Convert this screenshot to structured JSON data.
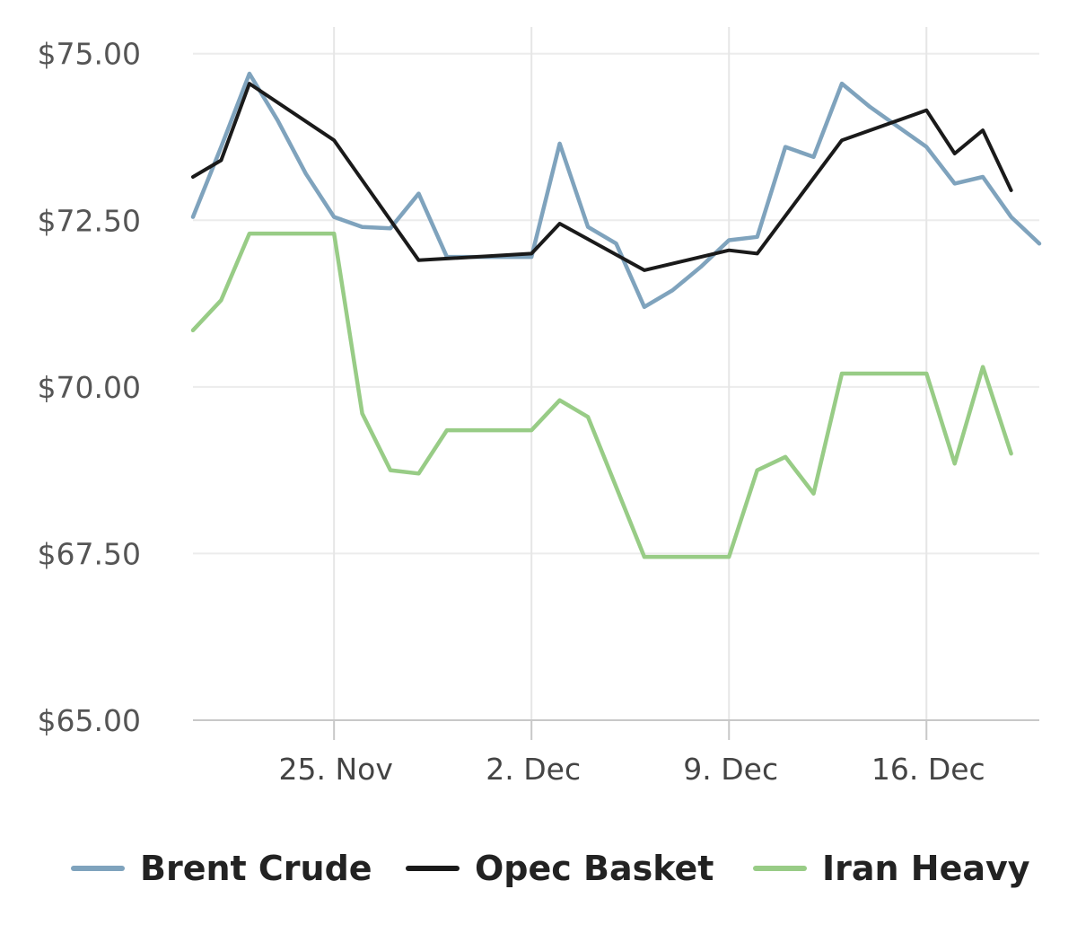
{
  "chart_data": {
    "type": "line",
    "title": "",
    "xlabel": "",
    "ylabel": "",
    "y_tick_labels": [
      "$65.00",
      "$67.50",
      "$70.00",
      "$72.50",
      "$75.00"
    ],
    "y_ticks": [
      65,
      67.5,
      70,
      72.5,
      75
    ],
    "ylim": [
      65,
      75.4
    ],
    "x_tick_labels": [
      "25. Nov",
      "2. Dec",
      "9. Dec",
      "16. Dec"
    ],
    "x_ticks": [
      "2019-11-25",
      "2019-12-02",
      "2019-12-09",
      "2019-12-16"
    ],
    "xlim": [
      "2019-11-20",
      "2019-12-20"
    ],
    "grid": true,
    "legend_position": "bottom",
    "series": [
      {
        "name": "Brent Crude",
        "color": "#7fa3bd",
        "points": [
          [
            "2019-11-20",
            72.55
          ],
          [
            "2019-11-21",
            73.6
          ],
          [
            "2019-11-22",
            74.7
          ],
          [
            "2019-11-23",
            74.0
          ],
          [
            "2019-11-24",
            73.2
          ],
          [
            "2019-11-25",
            72.55
          ],
          [
            "2019-11-26",
            72.4
          ],
          [
            "2019-11-27",
            72.38
          ],
          [
            "2019-11-28",
            72.9
          ],
          [
            "2019-11-29",
            71.95
          ],
          [
            "2019-11-30",
            71.95
          ],
          [
            "2019-12-01",
            71.95
          ],
          [
            "2019-12-02",
            71.95
          ],
          [
            "2019-12-03",
            73.65
          ],
          [
            "2019-12-04",
            72.4
          ],
          [
            "2019-12-05",
            72.15
          ],
          [
            "2019-12-06",
            71.2
          ],
          [
            "2019-12-07",
            71.45
          ],
          [
            "2019-12-08",
            71.8
          ],
          [
            "2019-12-09",
            72.2
          ],
          [
            "2019-12-10",
            72.25
          ],
          [
            "2019-12-11",
            73.6
          ],
          [
            "2019-12-12",
            73.45
          ],
          [
            "2019-12-13",
            74.55
          ],
          [
            "2019-12-14",
            74.2
          ],
          [
            "2019-12-15",
            73.9
          ],
          [
            "2019-12-16",
            73.6
          ],
          [
            "2019-12-17",
            73.05
          ],
          [
            "2019-12-18",
            73.15
          ],
          [
            "2019-12-19",
            72.55
          ],
          [
            "2019-12-20",
            72.15
          ]
        ]
      },
      {
        "name": "Opec Basket",
        "color": "#1a1a1a",
        "points": [
          [
            "2019-11-20",
            73.15
          ],
          [
            "2019-11-21",
            73.4
          ],
          [
            "2019-11-22",
            74.55
          ],
          [
            "2019-11-25",
            73.7
          ],
          [
            "2019-11-28",
            71.9
          ],
          [
            "2019-12-02",
            72.0
          ],
          [
            "2019-12-03",
            72.45
          ],
          [
            "2019-12-06",
            71.75
          ],
          [
            "2019-12-09",
            72.05
          ],
          [
            "2019-12-10",
            72.0
          ],
          [
            "2019-12-13",
            73.7
          ],
          [
            "2019-12-16",
            74.15
          ],
          [
            "2019-12-17",
            73.5
          ],
          [
            "2019-12-18",
            73.85
          ],
          [
            "2019-12-19",
            72.95
          ]
        ]
      },
      {
        "name": "Iran Heavy",
        "color": "#98cc86",
        "points": [
          [
            "2019-11-20",
            70.85
          ],
          [
            "2019-11-21",
            71.3
          ],
          [
            "2019-11-22",
            72.3
          ],
          [
            "2019-11-25",
            72.3
          ],
          [
            "2019-11-26",
            69.6
          ],
          [
            "2019-11-27",
            68.75
          ],
          [
            "2019-11-28",
            68.7
          ],
          [
            "2019-11-29",
            69.35
          ],
          [
            "2019-12-02",
            69.35
          ],
          [
            "2019-12-03",
            69.8
          ],
          [
            "2019-12-04",
            69.55
          ],
          [
            "2019-12-06",
            67.45
          ],
          [
            "2019-12-09",
            67.45
          ],
          [
            "2019-12-10",
            68.75
          ],
          [
            "2019-12-11",
            68.95
          ],
          [
            "2019-12-12",
            68.4
          ],
          [
            "2019-12-13",
            70.2
          ],
          [
            "2019-12-16",
            70.2
          ],
          [
            "2019-12-17",
            68.85
          ],
          [
            "2019-12-18",
            70.3
          ],
          [
            "2019-12-19",
            69.0
          ]
        ]
      }
    ]
  }
}
